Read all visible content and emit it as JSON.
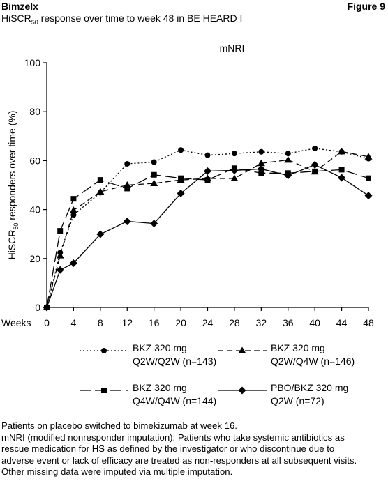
{
  "header": {
    "drug_name": "Bimzelx",
    "figure_label": "Figure 9",
    "subtitle_pre": "HiSCR",
    "subtitle_sub": "50",
    "subtitle_post": " response over time to week 48 in BE HEARD I"
  },
  "chart_data": {
    "type": "line",
    "title": "mNRI",
    "xlabel": "Weeks",
    "ylabel": "HiSCR50 responders over time (%)",
    "ylabel_parts": {
      "pre": "HiSCR",
      "sub": "50",
      "post": " responders over time (%)"
    },
    "x": [
      0,
      2,
      4,
      8,
      12,
      16,
      20,
      24,
      28,
      32,
      36,
      40,
      44,
      48
    ],
    "xticks": [
      0,
      4,
      8,
      12,
      16,
      20,
      24,
      28,
      32,
      36,
      40,
      44,
      48
    ],
    "ylim": [
      0,
      100
    ],
    "yticks": [
      0,
      20,
      40,
      60,
      80,
      100
    ],
    "xlim": [
      0,
      48
    ],
    "grid": false,
    "legend_position": "bottom",
    "series": [
      {
        "name": "BKZ 320 mg Q2W/Q2W (n=143)",
        "legend_line1": "BKZ 320 mg",
        "legend_line2": "Q2W/Q2W (n=143)",
        "marker": "circle",
        "dash": "dotted",
        "x": [
          0,
          2,
          4,
          8,
          12,
          16,
          20,
          24,
          28,
          32,
          36,
          40,
          44,
          48
        ],
        "values": [
          0,
          22.4,
          37.8,
          46.9,
          58.7,
          59.4,
          64.3,
          62.2,
          62.9,
          63.6,
          62.9,
          65.0,
          63.6,
          60.8
        ]
      },
      {
        "name": "BKZ 320 mg Q2W/Q4W (n=146)",
        "legend_line1": "BKZ 320 mg",
        "legend_line2": "Q2W/Q4W (n=146)",
        "marker": "triangle",
        "dash": "dashed",
        "x": [
          0,
          2,
          4,
          8,
          12,
          16,
          20,
          24,
          28,
          32,
          36,
          40,
          44,
          48
        ],
        "values": [
          0,
          21.2,
          39.7,
          47.3,
          50.0,
          50.7,
          52.1,
          52.7,
          52.7,
          58.9,
          60.3,
          55.5,
          63.7,
          61.6
        ]
      },
      {
        "name": "BKZ 320 mg Q4W/Q4W (n=144)",
        "legend_line1": "BKZ 320 mg",
        "legend_line2": "Q4W/Q4W (n=144)",
        "marker": "square",
        "dash": "longdash",
        "x": [
          0,
          2,
          4,
          8,
          12,
          16,
          20,
          24,
          28,
          32,
          36,
          40,
          44,
          48
        ],
        "values": [
          0,
          31.3,
          44.4,
          52.1,
          48.6,
          54.2,
          52.8,
          52.1,
          56.9,
          54.9,
          54.9,
          55.6,
          56.3,
          52.8
        ]
      },
      {
        "name": "PBO/BKZ 320 mg Q2W (n=72)",
        "legend_line1": "PBO/BKZ 320 mg",
        "legend_line2": "Q2W (n=72)",
        "marker": "diamond",
        "dash": "solid",
        "x": [
          0,
          2,
          4,
          8,
          12,
          16,
          20,
          24,
          28,
          32,
          36,
          40,
          44,
          48
        ],
        "values": [
          0,
          15.3,
          18.1,
          29.9,
          35.2,
          34.3,
          46.6,
          55.7,
          56.0,
          56.6,
          53.9,
          58.3,
          53.0,
          45.7
        ]
      }
    ]
  },
  "footnotes": [
    "Patients on placebo switched to bimekizumab at week 16.",
    "mNRI (modified nonresponder imputation): Patients who take systemic antibiotics as",
    "rescue medication for HS as defined by the investigator or who discontinue due to",
    "adverse event or lack of efficacy are treated as non-responders at all subsequent visits.",
    "Other missing data were imputed via multiple imputation."
  ]
}
